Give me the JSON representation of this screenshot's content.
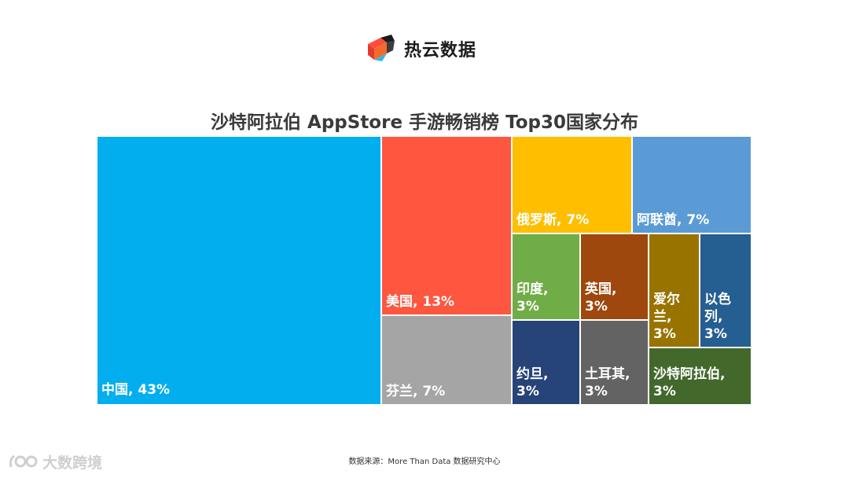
{
  "brand": {
    "name": "热云数据",
    "logo_icon": "reyun-cube-logo"
  },
  "watermark": {
    "text": "大数跨境",
    "icon": "dashuju-logo"
  },
  "source": "数据来源：More Than Data 数据研究中心",
  "chart_data": {
    "type": "treemap",
    "title": "沙特阿拉伯 AppStore 手游畅销榜 Top30国家分布",
    "unit": "%",
    "items": [
      {
        "name": "中国",
        "value": 43,
        "label": "中国, 43%",
        "color": "#03AEEF"
      },
      {
        "name": "美国",
        "value": 13,
        "label": "美国, 13%",
        "color": "#FF5640"
      },
      {
        "name": "芬兰",
        "value": 7,
        "label": "芬兰, 7%",
        "color": "#A5A5A5"
      },
      {
        "name": "俄罗斯",
        "value": 7,
        "label": "俄罗斯, 7%",
        "color": "#FFBF00"
      },
      {
        "name": "阿联酋",
        "value": 7,
        "label": "阿联酋, 7%",
        "color": "#5B9BD5"
      },
      {
        "name": "印度",
        "value": 3,
        "label": "印度, 3%",
        "color": "#70AD47"
      },
      {
        "name": "英国",
        "value": 3,
        "label": "英国, 3%",
        "color": "#9E480E"
      },
      {
        "name": "爱尔兰",
        "value": 3,
        "label": "爱尔兰, 3%",
        "color": "#997300"
      },
      {
        "name": "以色列",
        "value": 3,
        "label": "以色列, 3%",
        "color": "#255E91"
      },
      {
        "name": "约旦",
        "value": 3,
        "label": "约旦, 3%",
        "color": "#264478"
      },
      {
        "name": "土耳其",
        "value": 3,
        "label": "土耳其, 3%",
        "color": "#636363"
      },
      {
        "name": "沙特阿拉伯",
        "value": 3,
        "label": "沙特阿拉伯, 3%",
        "color": "#43682B"
      }
    ]
  }
}
